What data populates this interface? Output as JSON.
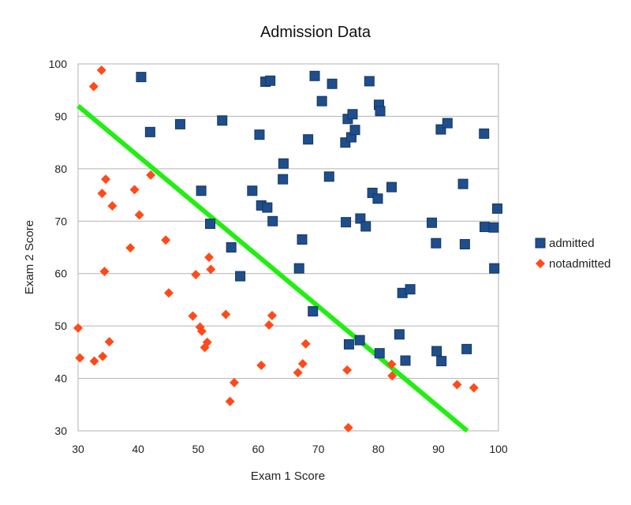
{
  "chart_data": {
    "type": "scatter",
    "title": "Admission Data",
    "xlabel": "Exam 1 Score",
    "ylabel": "Exam 2 Score",
    "xlim": [
      30,
      100
    ],
    "ylim": [
      30,
      100
    ],
    "xticks": [
      "30",
      "40",
      "50",
      "60",
      "70",
      "80",
      "90",
      "100"
    ],
    "yticks": [
      "30",
      "40",
      "50",
      "60",
      "70",
      "80",
      "90",
      "100"
    ],
    "grid": "horizontal",
    "legend_position": "right",
    "series": [
      {
        "name": "admitted",
        "marker": "square",
        "color": "#1f4e8c",
        "points": [
          [
            40.5,
            97.5
          ],
          [
            42,
            87
          ],
          [
            47,
            88.5
          ],
          [
            50.5,
            75.8
          ],
          [
            52,
            69.5
          ],
          [
            54,
            89.2
          ],
          [
            55.5,
            65
          ],
          [
            57,
            59.5
          ],
          [
            59,
            75.8
          ],
          [
            60.2,
            86.5
          ],
          [
            60.5,
            73
          ],
          [
            61.2,
            96.6
          ],
          [
            61.5,
            72.6
          ],
          [
            62,
            96.8
          ],
          [
            62.4,
            70
          ],
          [
            64.1,
            78
          ],
          [
            64.2,
            81
          ],
          [
            66.8,
            61
          ],
          [
            67.3,
            66.5
          ],
          [
            68.3,
            85.6
          ],
          [
            69.1,
            52.8
          ],
          [
            69.4,
            97.7
          ],
          [
            70.6,
            92.9
          ],
          [
            71.8,
            78.5
          ],
          [
            72.3,
            96.2
          ],
          [
            74.5,
            85
          ],
          [
            74.6,
            69.8
          ],
          [
            74.9,
            89.5
          ],
          [
            75.1,
            46.5
          ],
          [
            75.5,
            86
          ],
          [
            75.7,
            90.4
          ],
          [
            76.1,
            87.4
          ],
          [
            76.9,
            47.3
          ],
          [
            77,
            70.5
          ],
          [
            77.9,
            69
          ],
          [
            78.5,
            96.7
          ],
          [
            79,
            75.4
          ],
          [
            79.9,
            74.3
          ],
          [
            80.1,
            92.2
          ],
          [
            80.3,
            91
          ],
          [
            80.2,
            44.8
          ],
          [
            82.2,
            76.5
          ],
          [
            83.5,
            48.4
          ],
          [
            84,
            56.3
          ],
          [
            84.5,
            43.4
          ],
          [
            85.3,
            57
          ],
          [
            88.9,
            69.7
          ],
          [
            89.6,
            65.8
          ],
          [
            89.7,
            45.2
          ],
          [
            90.4,
            87.5
          ],
          [
            90.5,
            43.3
          ],
          [
            91.5,
            88.7
          ],
          [
            94.1,
            77.1
          ],
          [
            94.4,
            65.6
          ],
          [
            94.7,
            45.6
          ],
          [
            97.6,
            86.7
          ],
          [
            97.7,
            68.9
          ],
          [
            99.2,
            68.8
          ],
          [
            99.3,
            61
          ],
          [
            99.8,
            72.4
          ]
        ]
      },
      {
        "name": "notadmitted",
        "marker": "diamond",
        "color": "#ff4a1a",
        "points": [
          [
            30,
            49.6
          ],
          [
            30.3,
            43.9
          ],
          [
            32.6,
            95.7
          ],
          [
            32.7,
            43.3
          ],
          [
            33.9,
            98.8
          ],
          [
            34,
            75.3
          ],
          [
            34.1,
            44.2
          ],
          [
            34.4,
            60.4
          ],
          [
            34.6,
            78
          ],
          [
            35.2,
            47
          ],
          [
            35.7,
            72.9
          ],
          [
            38.7,
            64.9
          ],
          [
            39.4,
            76
          ],
          [
            40.2,
            71.2
          ],
          [
            42.1,
            78.8
          ],
          [
            44.6,
            66.4
          ],
          [
            45.1,
            56.3
          ],
          [
            49.1,
            51.9
          ],
          [
            49.6,
            59.8
          ],
          [
            50.3,
            49.8
          ],
          [
            50.6,
            49
          ],
          [
            51.1,
            45.9
          ],
          [
            51.5,
            46.9
          ],
          [
            51.8,
            63.1
          ],
          [
            52.1,
            60.8
          ],
          [
            54.6,
            52.2
          ],
          [
            55.3,
            35.6
          ],
          [
            56,
            39.2
          ],
          [
            60.5,
            42.5
          ],
          [
            61.8,
            50.2
          ],
          [
            62.3,
            52
          ],
          [
            66.6,
            41.1
          ],
          [
            67.4,
            42.8
          ],
          [
            67.9,
            46.6
          ],
          [
            74.8,
            41.6
          ],
          [
            75,
            30.6
          ],
          [
            82.2,
            42.7
          ],
          [
            82.3,
            40.5
          ],
          [
            93.1,
            38.8
          ],
          [
            95.9,
            38.2
          ]
        ]
      }
    ],
    "trend_line": {
      "name": "decision-boundary",
      "color": "#22ee11",
      "points": [
        [
          30,
          92
        ],
        [
          94.8,
          30
        ]
      ]
    }
  }
}
